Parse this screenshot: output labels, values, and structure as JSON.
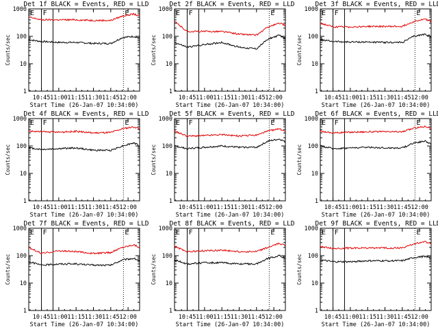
{
  "colors": {
    "events": "#000000",
    "lld": "#e00000",
    "axes": "#000000",
    "background": "#ffffff"
  },
  "shared": {
    "xlabel": "Start Time (26-Jan-07 10:34:00)",
    "ylabel": "Counts/sec",
    "y_scale": "log",
    "ylim": [
      1,
      1000
    ],
    "y_ticks": [
      "1",
      "10",
      "100",
      "1000"
    ],
    "x_ticks": [
      "10:45",
      "11:00",
      "11:15",
      "11:30",
      "11:45",
      "12:00"
    ],
    "markers": [
      {
        "label": "E",
        "time": "10:34",
        "style": "dotted"
      },
      {
        "label": "F",
        "time": "10:45",
        "style": "solid"
      },
      {
        "label": "",
        "time": "10:55",
        "style": "solid"
      },
      {
        "label": "E",
        "time": "11:56",
        "style": "dotted"
      }
    ]
  },
  "chart_data": [
    {
      "type": "line",
      "title": "Det 1f BLACK = Events, RED = LLD",
      "xlabel": "Start Time (26-Jan-07 10:34:00)",
      "ylabel": "Counts/sec",
      "ylim": [
        1,
        1000
      ],
      "x": [
        "10:34",
        "10:45",
        "11:00",
        "11:15",
        "11:30",
        "11:45",
        "11:55",
        "12:05",
        "12:10"
      ],
      "series": [
        {
          "name": "Events",
          "color": "#000000",
          "values": [
            75,
            65,
            60,
            60,
            55,
            55,
            90,
            100,
            85
          ]
        },
        {
          "name": "LLD",
          "color": "#e00000",
          "values": [
            500,
            400,
            400,
            400,
            380,
            380,
            550,
            650,
            550
          ]
        }
      ]
    },
    {
      "type": "line",
      "title": "Det 2f BLACK = Events, RED = LLD",
      "xlabel": "Start Time (26-Jan-07 10:34:00)",
      "ylabel": "Counts/sec",
      "ylim": [
        1,
        1000
      ],
      "x": [
        "10:34",
        "10:45",
        "11:00",
        "11:15",
        "11:30",
        "11:45",
        "11:55",
        "12:05",
        "12:10"
      ],
      "series": [
        {
          "name": "Events",
          "color": "#000000",
          "values": [
            60,
            40,
            50,
            60,
            40,
            35,
            80,
            110,
            80
          ]
        },
        {
          "name": "LLD",
          "color": "#e00000",
          "values": [
            350,
            150,
            150,
            150,
            120,
            110,
            220,
            300,
            250
          ]
        }
      ]
    },
    {
      "type": "line",
      "title": "Det 3f BLACK = Events, RED = LLD",
      "xlabel": "Start Time (26-Jan-07 10:34:00)",
      "ylabel": "Counts/sec",
      "ylim": [
        1,
        1000
      ],
      "x": [
        "10:34",
        "10:45",
        "11:00",
        "11:15",
        "11:30",
        "11:45",
        "11:55",
        "12:05",
        "12:10"
      ],
      "series": [
        {
          "name": "Events",
          "color": "#000000",
          "values": [
            75,
            65,
            62,
            62,
            60,
            60,
            100,
            120,
            100
          ]
        },
        {
          "name": "LLD",
          "color": "#e00000",
          "values": [
            300,
            220,
            220,
            230,
            230,
            230,
            350,
            420,
            350
          ]
        }
      ]
    },
    {
      "type": "line",
      "title": "Det 4f BLACK = Events, RED = LLD",
      "xlabel": "Start Time (26-Jan-07 10:34:00)",
      "ylabel": "Counts/sec",
      "ylim": [
        1,
        1000
      ],
      "x": [
        "10:34",
        "10:45",
        "11:00",
        "11:15",
        "11:30",
        "11:45",
        "11:55",
        "12:05",
        "12:10"
      ],
      "series": [
        {
          "name": "Events",
          "color": "#000000",
          "values": [
            85,
            75,
            80,
            85,
            70,
            70,
            100,
            130,
            100
          ]
        },
        {
          "name": "LLD",
          "color": "#e00000",
          "values": [
            350,
            330,
            320,
            340,
            300,
            310,
            420,
            500,
            430
          ]
        }
      ]
    },
    {
      "type": "line",
      "title": "Det 5f BLACK = Events, RED = LLD",
      "xlabel": "Start Time (26-Jan-07 10:34:00)",
      "ylabel": "Counts/sec",
      "ylim": [
        1,
        1000
      ],
      "x": [
        "10:34",
        "10:45",
        "11:00",
        "11:15",
        "11:30",
        "11:45",
        "11:55",
        "12:05",
        "12:10"
      ],
      "series": [
        {
          "name": "Events",
          "color": "#000000",
          "values": [
            100,
            80,
            90,
            100,
            90,
            90,
            150,
            180,
            140
          ]
        },
        {
          "name": "LLD",
          "color": "#e00000",
          "values": [
            350,
            230,
            240,
            260,
            230,
            250,
            350,
            420,
            350
          ]
        }
      ]
    },
    {
      "type": "line",
      "title": "Det 6f BLACK = Events, RED = LLD",
      "xlabel": "Start Time (26-Jan-07 10:34:00)",
      "ylabel": "Counts/sec",
      "ylim": [
        1,
        1000
      ],
      "x": [
        "10:34",
        "10:45",
        "11:00",
        "11:15",
        "11:30",
        "11:45",
        "11:55",
        "12:05",
        "12:10"
      ],
      "series": [
        {
          "name": "Events",
          "color": "#000000",
          "values": [
            100,
            80,
            85,
            90,
            85,
            85,
            130,
            150,
            120
          ]
        },
        {
          "name": "LLD",
          "color": "#e00000",
          "values": [
            350,
            300,
            320,
            330,
            330,
            330,
            450,
            520,
            450
          ]
        }
      ]
    },
    {
      "type": "line",
      "title": "Det 7f BLACK = Events, RED = LLD",
      "xlabel": "Start Time (26-Jan-07 10:34:00)",
      "ylabel": "Counts/sec",
      "ylim": [
        1,
        1000
      ],
      "x": [
        "10:34",
        "10:45",
        "11:00",
        "11:15",
        "11:30",
        "11:45",
        "11:55",
        "12:05",
        "12:10"
      ],
      "series": [
        {
          "name": "Events",
          "color": "#000000",
          "values": [
            60,
            45,
            50,
            50,
            45,
            45,
            70,
            80,
            65
          ]
        },
        {
          "name": "LLD",
          "color": "#e00000",
          "values": [
            200,
            120,
            150,
            140,
            120,
            130,
            200,
            250,
            200
          ]
        }
      ]
    },
    {
      "type": "line",
      "title": "Det 8f BLACK = Events, RED = LLD",
      "xlabel": "Start Time (26-Jan-07 10:34:00)",
      "ylabel": "Counts/sec",
      "ylim": [
        1,
        1000
      ],
      "x": [
        "10:34",
        "10:45",
        "11:00",
        "11:15",
        "11:30",
        "11:45",
        "11:55",
        "12:05",
        "12:10"
      ],
      "series": [
        {
          "name": "Events",
          "color": "#000000",
          "values": [
            70,
            50,
            55,
            55,
            50,
            50,
            80,
            100,
            80
          ]
        },
        {
          "name": "LLD",
          "color": "#e00000",
          "values": [
            220,
            140,
            150,
            160,
            140,
            140,
            200,
            280,
            230
          ]
        }
      ]
    },
    {
      "type": "line",
      "title": "Det 9f BLACK = Events, RED = LLD",
      "xlabel": "Start Time (26-Jan-07 10:34:00)",
      "ylabel": "Counts/sec",
      "ylim": [
        1,
        1000
      ],
      "x": [
        "10:34",
        "10:45",
        "11:00",
        "11:15",
        "11:30",
        "11:45",
        "11:55",
        "12:05",
        "12:10"
      ],
      "series": [
        {
          "name": "Events",
          "color": "#000000",
          "values": [
            70,
            60,
            60,
            65,
            65,
            65,
            85,
            95,
            80
          ]
        },
        {
          "name": "LLD",
          "color": "#e00000",
          "values": [
            220,
            180,
            190,
            190,
            190,
            190,
            270,
            320,
            270
          ]
        }
      ]
    }
  ]
}
